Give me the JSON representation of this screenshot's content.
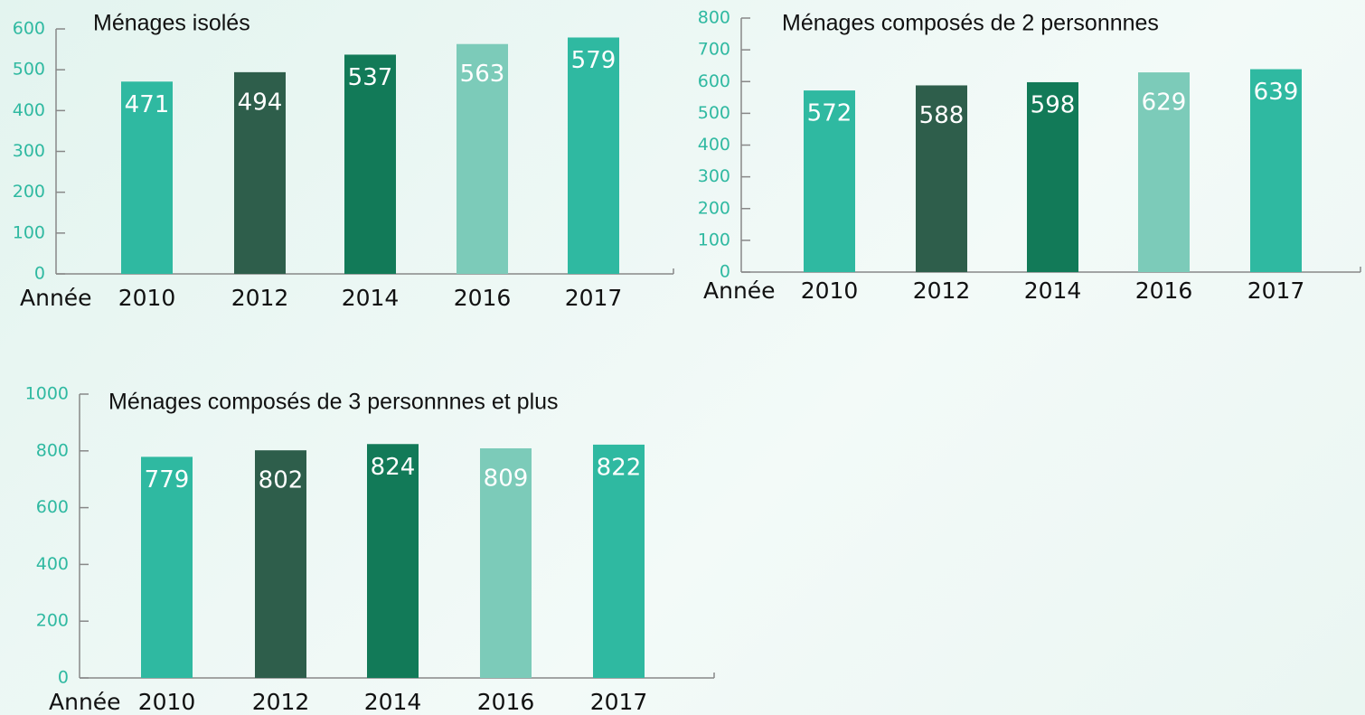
{
  "chart_data": [
    {
      "type": "bar",
      "title": "Ménages isolés",
      "x_label": "Année",
      "categories": [
        "2010",
        "2012",
        "2014",
        "2016",
        "2017"
      ],
      "values": [
        471,
        494,
        537,
        563,
        579
      ],
      "colors": [
        "#2fb9a1",
        "#2e5e4b",
        "#127a58",
        "#7ccbb9",
        "#2fb9a1"
      ],
      "ylim": [
        0,
        600
      ],
      "yticks": [
        0,
        100,
        200,
        300,
        400,
        500,
        600
      ]
    },
    {
      "type": "bar",
      "title": "Ménages composés de 2 personnnes",
      "x_label": "Année",
      "categories": [
        "2010",
        "2012",
        "2014",
        "2016",
        "2017"
      ],
      "values": [
        572,
        588,
        598,
        629,
        639
      ],
      "colors": [
        "#2fb9a1",
        "#2e5e4b",
        "#127a58",
        "#7ccbb9",
        "#2fb9a1"
      ],
      "ylim": [
        0,
        800
      ],
      "yticks": [
        0,
        100,
        200,
        300,
        400,
        500,
        600,
        700,
        800
      ]
    },
    {
      "type": "bar",
      "title": "Ménages composés de 3 personnnes et plus",
      "x_label": "Année",
      "categories": [
        "2010",
        "2012",
        "2014",
        "2016",
        "2017"
      ],
      "values": [
        779,
        802,
        824,
        809,
        822
      ],
      "colors": [
        "#2fb9a1",
        "#2e5e4b",
        "#127a58",
        "#7ccbb9",
        "#2fb9a1"
      ],
      "ylim": [
        0,
        1000
      ],
      "yticks": [
        0,
        200,
        400,
        600,
        800,
        1000
      ]
    }
  ]
}
